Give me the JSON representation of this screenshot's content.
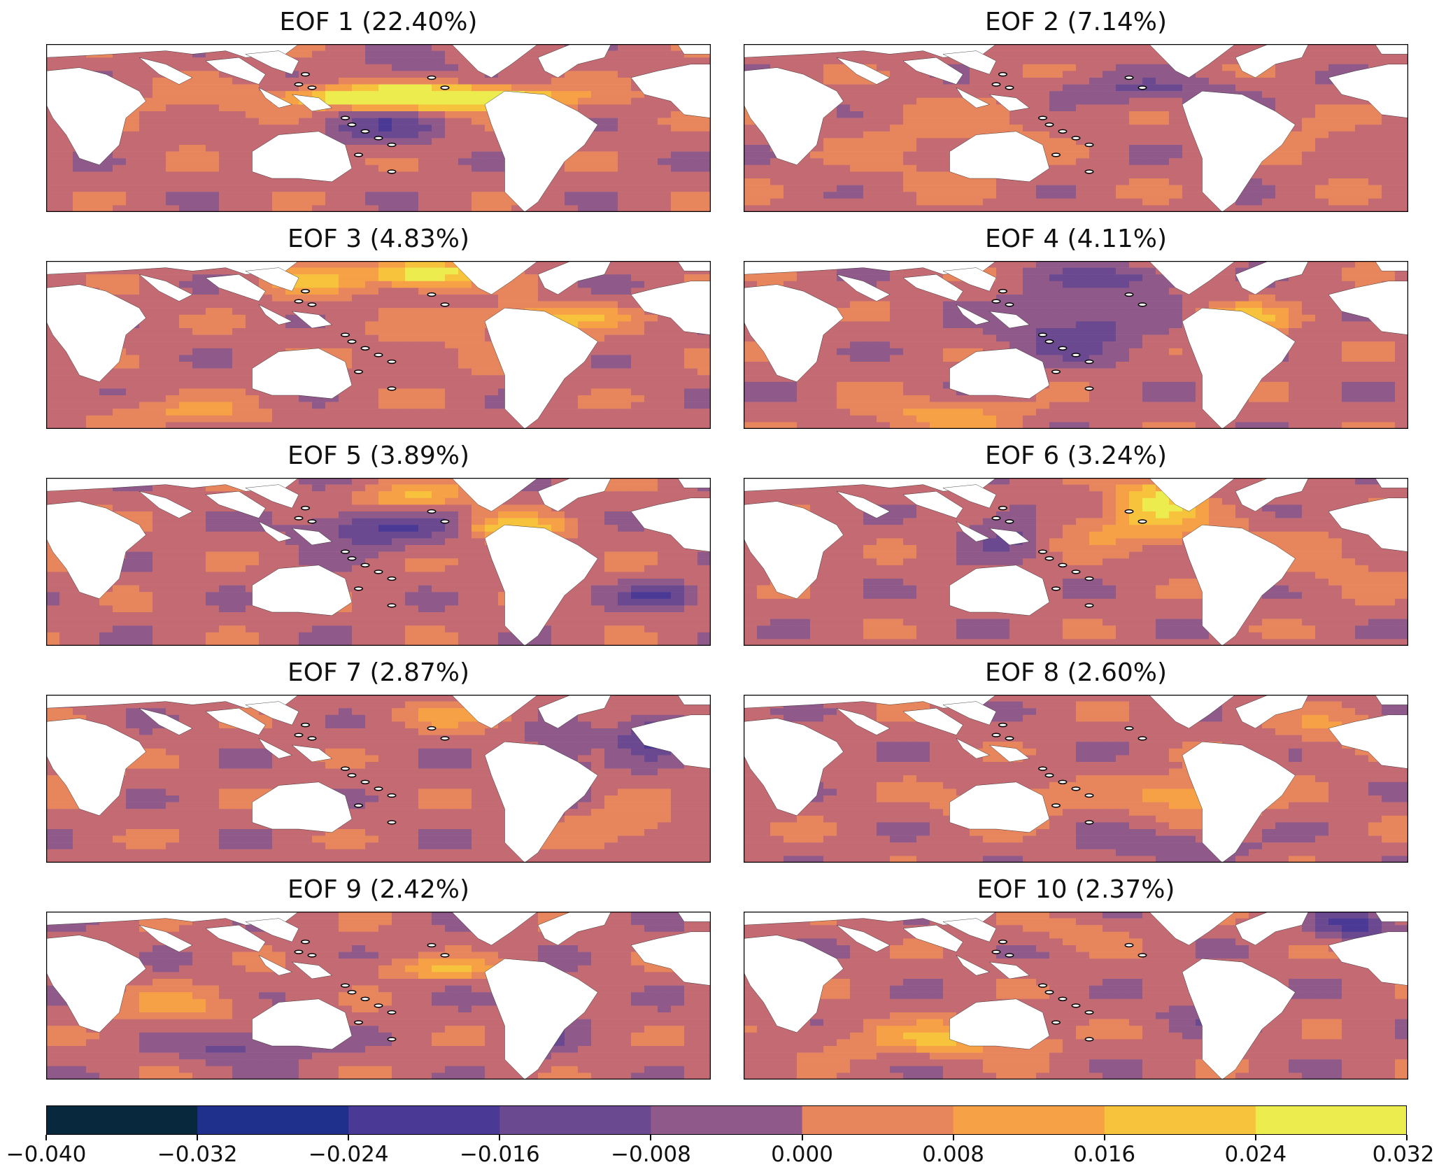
{
  "chart_data": {
    "type": "heatmap",
    "layout": {
      "rows": 5,
      "cols": 2
    },
    "panels": [
      {
        "title": "EOF 1 (22.40%)"
      },
      {
        "title": "EOF 2 (7.14%)"
      },
      {
        "title": "EOF 3 (4.83%)"
      },
      {
        "title": "EOF 4 (4.11%)"
      },
      {
        "title": "EOF 5 (3.89%)"
      },
      {
        "title": "EOF 6 (3.24%)"
      },
      {
        "title": "EOF 7 (2.87%)"
      },
      {
        "title": "EOF 8 (2.60%)"
      },
      {
        "title": "EOF 9 (2.42%)"
      },
      {
        "title": "EOF 10 (2.37%)"
      }
    ],
    "colorbar": {
      "vmin": -0.04,
      "vmax": 0.032,
      "ticks": [
        "−0.040",
        "−0.032",
        "−0.024",
        "−0.016",
        "−0.008",
        "0.000",
        "0.008",
        "0.016",
        "0.024",
        "0.032"
      ],
      "colors": [
        "#08283d",
        "#1f2f8c",
        "#4a3a96",
        "#6b4991",
        "#8f5a8a",
        "#c46a72",
        "#e7855d",
        "#f6a146",
        "#f7c23c",
        "#ecec4f"
      ]
    }
  }
}
